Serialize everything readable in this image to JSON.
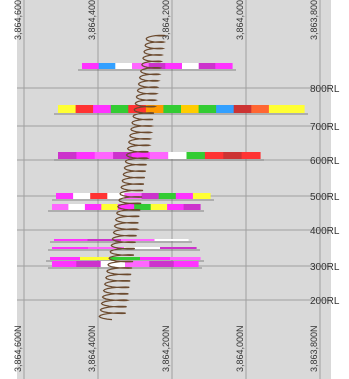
{
  "colors": {
    "background": "#d9d9d9",
    "gridline": "#a0a0a0",
    "frame": "#ffffff",
    "label": "#3a3a3a",
    "drillhole": "#6b4a2e"
  },
  "grid": {
    "northing_labels": [
      {
        "id": "n3864600",
        "text": "3,864,600N"
      },
      {
        "id": "n3864400",
        "text": "3,864,400N"
      },
      {
        "id": "n3864200",
        "text": "3,864,200N"
      },
      {
        "id": "n3864000",
        "text": "3,864,000N"
      },
      {
        "id": "n3863800",
        "text": "3,863,800N"
      }
    ],
    "rl_labels": [
      {
        "id": "rl800",
        "text": "800RL"
      },
      {
        "id": "rl700",
        "text": "700RL"
      },
      {
        "id": "rl600",
        "text": "600RL"
      },
      {
        "id": "rl500",
        "text": "500RL"
      },
      {
        "id": "rl400",
        "text": "400RL"
      },
      {
        "id": "rl300",
        "text": "300RL"
      },
      {
        "id": "rl200",
        "text": "200RL"
      }
    ]
  },
  "drillhole": {
    "name": "spiral-drillhole"
  },
  "intercept_bars": [
    {
      "level": "860",
      "segments": [
        "#ff33ff",
        "#33a0ff",
        "#ffffff",
        "#ff66ff",
        "#cc33cc",
        "#ff33ff",
        "#ffffff",
        "#cc33cc",
        "#ff33ff"
      ]
    },
    {
      "level": "740",
      "segments": [
        "#ffff33",
        "#ff3333",
        "#ff33ff",
        "#33cc33",
        "#ff3333",
        "#ff9900",
        "#33cc33",
        "#ffcc00",
        "#33cc33",
        "#33a0ff",
        "#cc3333",
        "#ff6633",
        "#ffff33",
        "#ffff33"
      ]
    },
    {
      "level": "620",
      "segments": [
        "#cc33cc",
        "#ff33ff",
        "#ff66ff",
        "#cc33cc",
        "#ff33ff",
        "#ff66ff",
        "#ffffff",
        "#33cc33",
        "#ff3333",
        "#cc3333",
        "#ff3333"
      ]
    },
    {
      "level": "505",
      "segments": [
        "#ff33ff",
        "#ffffff",
        "#ff3333",
        "#ffffff",
        "#ff66ff",
        "#cc33cc",
        "#33cc33",
        "#ff33ff",
        "#ffff33"
      ]
    },
    {
      "level": "480",
      "segments": [
        "#ff66ff",
        "#ffffff",
        "#ff33ff",
        "#ffff33",
        "#ff33ff",
        "#33cc33",
        "#ffff33",
        "#ff33ff",
        "#cc33cc"
      ]
    },
    {
      "level": "395",
      "segments": [
        "#ff33ff",
        "#cc33cc",
        "#ff66ff",
        "#ffffff"
      ]
    },
    {
      "level": "375",
      "segments": [
        "#ff33ff",
        "#ff66ff",
        "#ffffff",
        "#cc33cc"
      ]
    },
    {
      "level": "350",
      "segments": [
        "#ff33ff",
        "#ffff33",
        "#33cc33",
        "#ff33ff",
        "#ff66ff"
      ]
    },
    {
      "level": "330",
      "segments": [
        "#ff33ff",
        "#cc33cc",
        "#ffffff",
        "#ff66ff",
        "#cc33cc",
        "#ff33ff"
      ]
    }
  ]
}
